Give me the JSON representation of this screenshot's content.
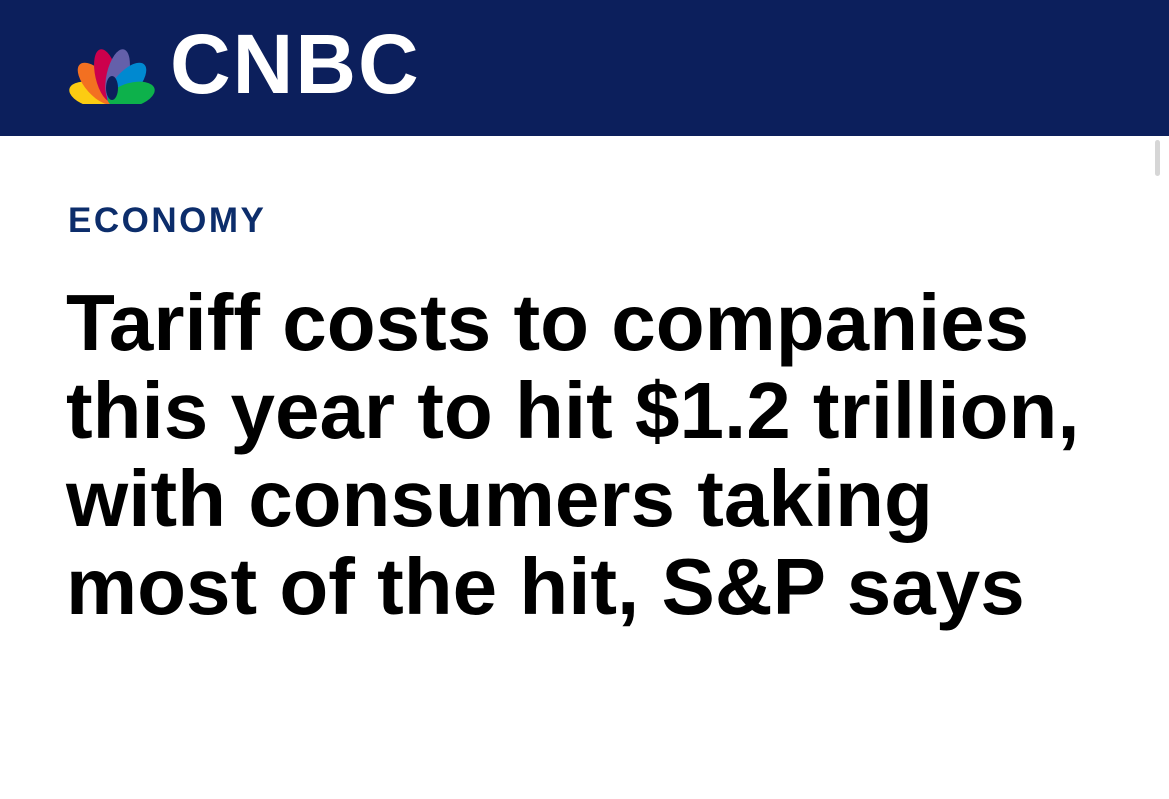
{
  "header": {
    "logo_text": "CNBC"
  },
  "article": {
    "section": "ECONOMY",
    "headline_lines": [
      "Tariff costs to companies",
      "this year to hit $1.2 trillion,",
      "with consumers taking",
      "most of the hit, S&P says"
    ]
  }
}
